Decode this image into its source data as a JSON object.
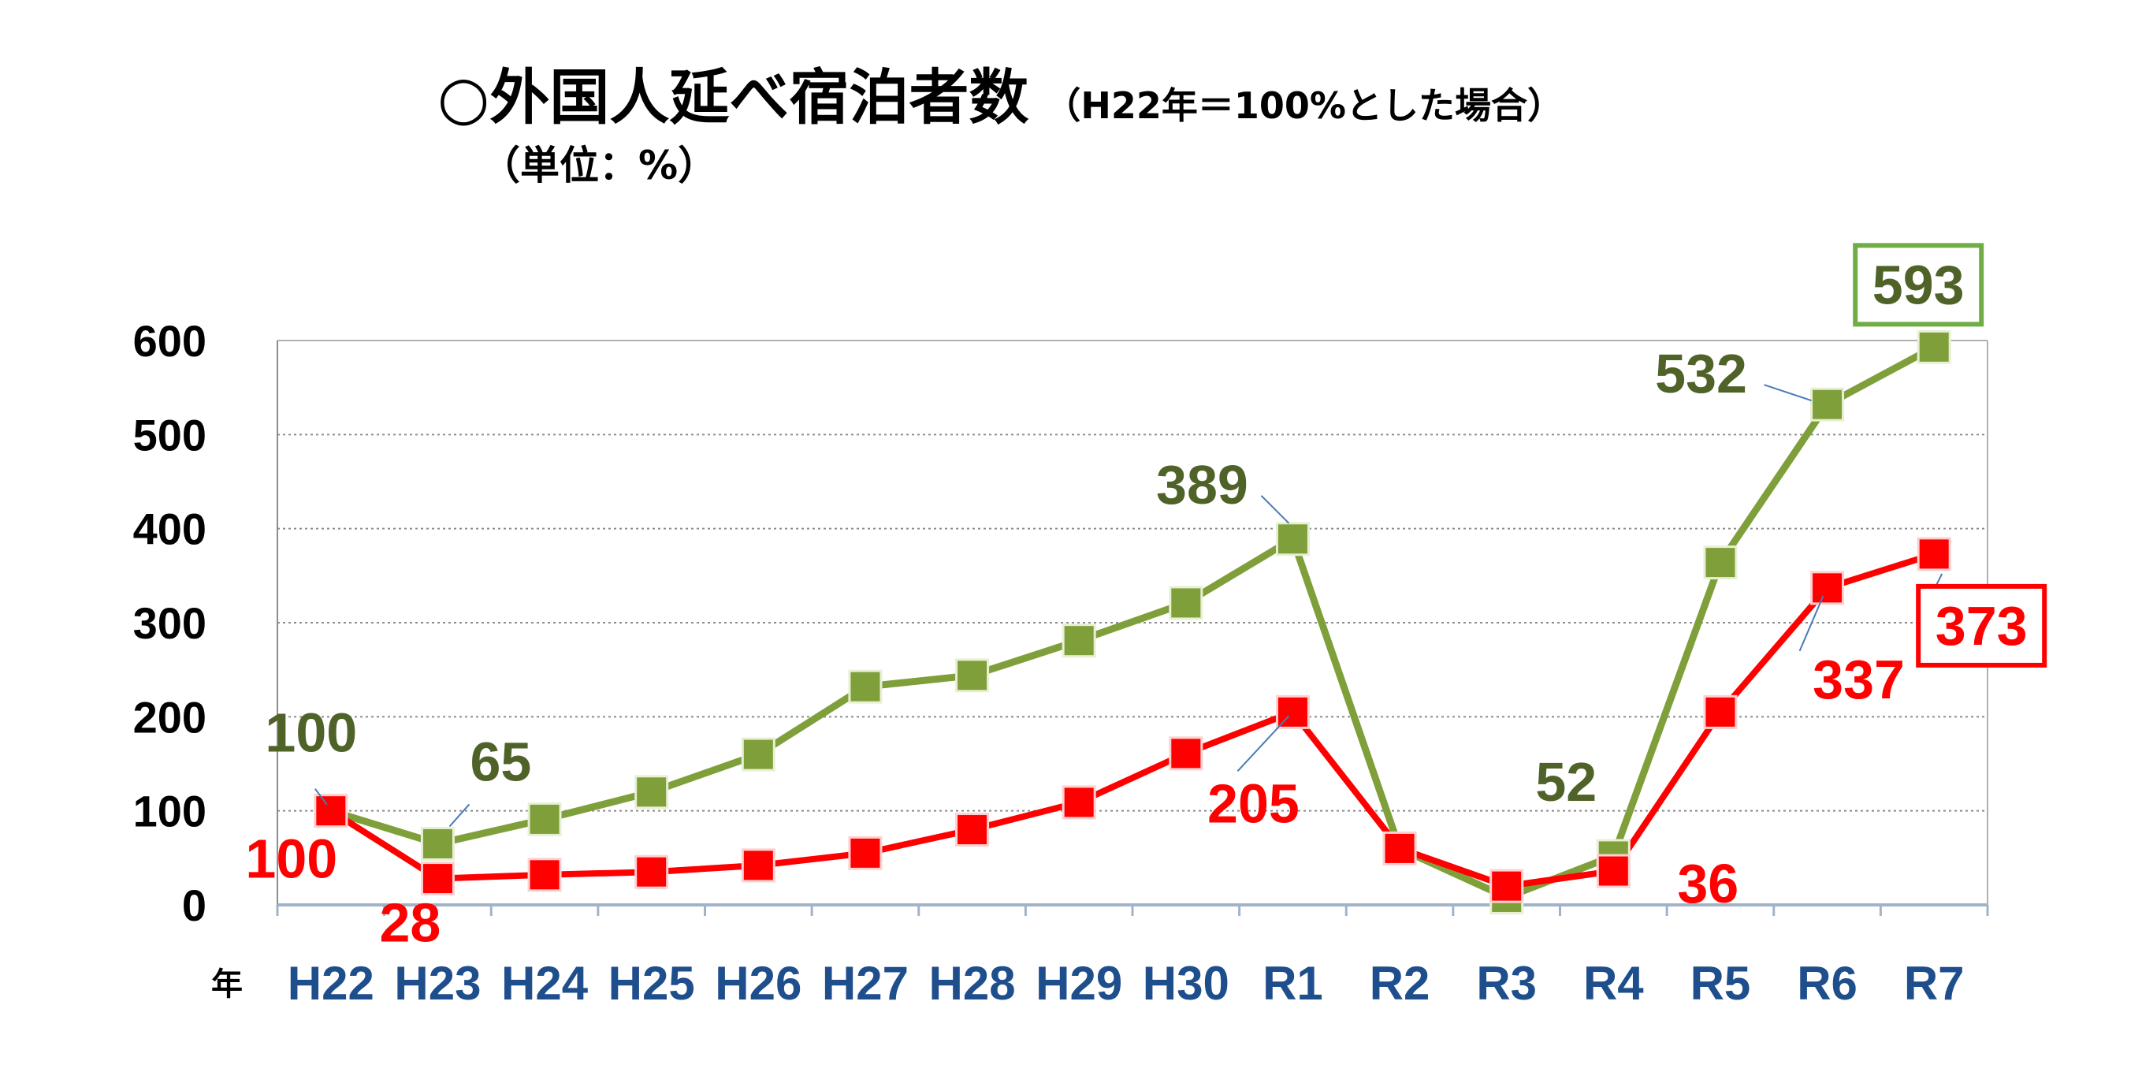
{
  "title": {
    "main": "○外国人延べ宿泊者数",
    "sub": "（H22年＝100%とした場合）",
    "unit": "（単位：%）"
  },
  "colors": {
    "series_a": "#7f9f3a",
    "series_a_label": "#4f6228",
    "series_b": "#ff0000",
    "axis_x_label": "#1f4e8c"
  },
  "chart_data": {
    "type": "line",
    "xlabel": "年",
    "ylabel": "",
    "ylim": [
      0,
      600
    ],
    "yticks": [
      0,
      100,
      200,
      300,
      400,
      500,
      600
    ],
    "grid": true,
    "categories": [
      "H22",
      "H23",
      "H24",
      "H25",
      "H26",
      "H27",
      "H28",
      "H29",
      "H30",
      "R1",
      "R2",
      "R3",
      "R4",
      "R5",
      "R6",
      "R7"
    ],
    "series": [
      {
        "color": "#7f9f3a",
        "values": [
          100,
          65,
          91,
          120,
          160,
          232,
          244,
          281,
          321,
          389,
          60,
          8,
          52,
          364,
          532,
          593
        ]
      },
      {
        "color": "#ff0000",
        "values": [
          100,
          28,
          32,
          35,
          42,
          55,
          80,
          109,
          161,
          205,
          60,
          20,
          36,
          205,
          337,
          373
        ]
      }
    ],
    "data_labels": [
      {
        "text": "100",
        "series": 0,
        "index": 0
      },
      {
        "text": "65",
        "series": 0,
        "index": 1
      },
      {
        "text": "389",
        "series": 0,
        "index": 9
      },
      {
        "text": "52",
        "series": 0,
        "index": 12
      },
      {
        "text": "532",
        "series": 0,
        "index": 14
      },
      {
        "text": "593",
        "series": 0,
        "index": 15,
        "boxed": true
      },
      {
        "text": "100",
        "series": 1,
        "index": 0
      },
      {
        "text": "28",
        "series": 1,
        "index": 1
      },
      {
        "text": "205",
        "series": 1,
        "index": 9
      },
      {
        "text": "36",
        "series": 1,
        "index": 12
      },
      {
        "text": "337",
        "series": 1,
        "index": 14
      },
      {
        "text": "373",
        "series": 1,
        "index": 15,
        "boxed": true
      }
    ]
  }
}
